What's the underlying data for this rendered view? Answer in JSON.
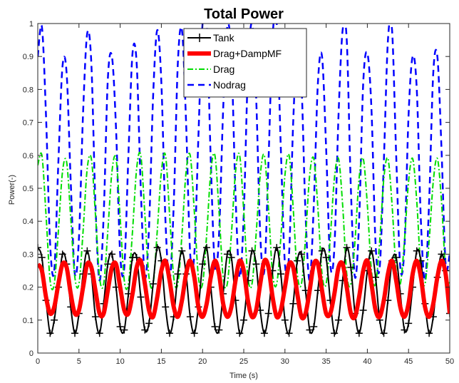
{
  "chart_data": {
    "type": "line",
    "title": "Total Power",
    "xlabel": "Time (s)",
    "ylabel": "Power(-)",
    "xlim": [
      0,
      50
    ],
    "ylim": [
      0,
      1
    ],
    "xticks": [
      "0",
      "5",
      "10",
      "15",
      "20",
      "25",
      "30",
      "35",
      "40",
      "45",
      "50"
    ],
    "yticks": [
      "0",
      "0.1",
      "0.2",
      "0.3",
      "0.4",
      "0.5",
      "0.6",
      "0.7",
      "0.8",
      "0.9",
      "1"
    ],
    "grid": false,
    "legend_position": "top-center",
    "series": [
      {
        "name": "Tank",
        "color": "#000000",
        "style": "solid-plus-markers",
        "x": [
          0.0,
          0.5,
          1.0,
          1.5,
          2.0,
          2.5,
          3.0,
          3.5,
          4.0,
          4.5,
          5.0,
          5.5,
          6.0,
          6.5,
          7.0,
          7.5,
          8.0,
          8.5,
          9.0,
          9.5,
          10.0,
          10.5,
          11.0,
          11.5,
          12.0,
          12.5,
          13.0,
          13.5,
          14.0,
          14.5,
          15.0,
          15.5,
          16.0,
          16.5,
          17.0,
          17.5,
          18.0,
          18.5,
          19.0,
          19.5,
          20.0,
          20.5,
          21.0,
          21.5,
          22.0,
          22.5,
          23.0,
          23.5,
          24.0,
          24.5,
          25.0,
          25.5,
          26.0,
          26.5,
          27.0,
          27.5,
          28.0,
          28.5,
          29.0,
          29.5,
          30.0,
          30.5,
          31.0,
          31.5,
          32.0,
          32.5,
          33.0,
          33.5,
          34.0,
          34.5,
          35.0,
          35.5,
          36.0,
          36.5,
          37.0,
          37.5,
          38.0,
          38.5,
          39.0,
          39.5,
          40.0,
          40.5,
          41.0,
          41.5,
          42.0,
          42.5,
          43.0,
          43.5,
          44.0,
          44.5,
          45.0,
          45.5,
          46.0,
          46.5,
          47.0,
          47.5,
          48.0,
          48.5,
          49.0,
          49.5,
          50.0
        ],
        "values": [
          0.32,
          0.29,
          0.16,
          0.06,
          0.1,
          0.2,
          0.3,
          0.27,
          0.14,
          0.06,
          0.12,
          0.24,
          0.31,
          0.24,
          0.11,
          0.06,
          0.15,
          0.27,
          0.3,
          0.2,
          0.08,
          0.07,
          0.18,
          0.29,
          0.29,
          0.17,
          0.07,
          0.09,
          0.21,
          0.32,
          0.28,
          0.14,
          0.06,
          0.11,
          0.24,
          0.31,
          0.24,
          0.11,
          0.06,
          0.14,
          0.27,
          0.32,
          0.2,
          0.08,
          0.07,
          0.18,
          0.3,
          0.29,
          0.16,
          0.06,
          0.1,
          0.22,
          0.31,
          0.27,
          0.13,
          0.06,
          0.12,
          0.25,
          0.32,
          0.24,
          0.1,
          0.06,
          0.15,
          0.28,
          0.3,
          0.19,
          0.07,
          0.08,
          0.19,
          0.31,
          0.29,
          0.16,
          0.06,
          0.1,
          0.22,
          0.32,
          0.26,
          0.12,
          0.06,
          0.13,
          0.25,
          0.31,
          0.23,
          0.1,
          0.06,
          0.16,
          0.28,
          0.29,
          0.18,
          0.07,
          0.09,
          0.2,
          0.31,
          0.28,
          0.15,
          0.06,
          0.11,
          0.23,
          0.3,
          0.25,
          0.12
        ]
      },
      {
        "name": "Drag+DampMF",
        "color": "#ff0000",
        "style": "thick-solid",
        "x": [
          0.0,
          0.5,
          1.0,
          1.5,
          2.0,
          2.5,
          3.0,
          3.5,
          4.0,
          4.5,
          5.0,
          5.5,
          6.0,
          6.5,
          7.0,
          7.5,
          8.0,
          8.5,
          9.0,
          9.5,
          10.0,
          10.5,
          11.0,
          11.5,
          12.0,
          12.5,
          13.0,
          13.5,
          14.0,
          14.5,
          15.0,
          15.5,
          16.0,
          16.5,
          17.0,
          17.5,
          18.0,
          18.5,
          19.0,
          19.5,
          20.0,
          20.5,
          21.0,
          21.5,
          22.0,
          22.5,
          23.0,
          23.5,
          24.0,
          24.5,
          25.0,
          25.5,
          26.0,
          26.5,
          27.0,
          27.5,
          28.0,
          28.5,
          29.0,
          29.5,
          30.0,
          30.5,
          31.0,
          31.5,
          32.0,
          32.5,
          33.0,
          33.5,
          34.0,
          34.5,
          35.0,
          35.5,
          36.0,
          36.5,
          37.0,
          37.5,
          38.0,
          38.5,
          39.0,
          39.5,
          40.0,
          40.5,
          41.0,
          41.5,
          42.0,
          42.5,
          43.0,
          43.5,
          44.0,
          44.5,
          45.0,
          45.5,
          46.0,
          46.5,
          47.0,
          47.5,
          48.0,
          48.5,
          49.0,
          49.5,
          50.0
        ],
        "values": [
          0.27,
          0.25,
          0.17,
          0.12,
          0.14,
          0.21,
          0.27,
          0.26,
          0.18,
          0.12,
          0.13,
          0.2,
          0.27,
          0.26,
          0.19,
          0.12,
          0.12,
          0.19,
          0.26,
          0.27,
          0.2,
          0.13,
          0.12,
          0.18,
          0.26,
          0.28,
          0.21,
          0.13,
          0.11,
          0.17,
          0.25,
          0.28,
          0.22,
          0.14,
          0.11,
          0.16,
          0.24,
          0.28,
          0.23,
          0.14,
          0.11,
          0.15,
          0.23,
          0.28,
          0.24,
          0.15,
          0.11,
          0.14,
          0.22,
          0.28,
          0.25,
          0.16,
          0.11,
          0.13,
          0.21,
          0.28,
          0.26,
          0.17,
          0.11,
          0.13,
          0.2,
          0.27,
          0.26,
          0.18,
          0.11,
          0.12,
          0.19,
          0.27,
          0.27,
          0.19,
          0.12,
          0.12,
          0.18,
          0.26,
          0.27,
          0.2,
          0.12,
          0.11,
          0.17,
          0.25,
          0.28,
          0.21,
          0.13,
          0.11,
          0.16,
          0.24,
          0.28,
          0.22,
          0.14,
          0.11,
          0.15,
          0.24,
          0.28,
          0.23,
          0.14,
          0.11,
          0.15,
          0.23,
          0.28,
          0.24,
          0.12
        ]
      },
      {
        "name": "Drag",
        "color": "#00dd00",
        "style": "dashdot",
        "x": [
          0.0,
          0.5,
          1.0,
          1.5,
          2.0,
          2.5,
          3.0,
          3.5,
          4.0,
          4.5,
          5.0,
          5.5,
          6.0,
          6.5,
          7.0,
          7.5,
          8.0,
          8.5,
          9.0,
          9.5,
          10.0,
          10.5,
          11.0,
          11.5,
          12.0,
          12.5,
          13.0,
          13.5,
          14.0,
          14.5,
          15.0,
          15.5,
          16.0,
          16.5,
          17.0,
          17.5,
          18.0,
          18.5,
          19.0,
          19.5,
          20.0,
          20.5,
          21.0,
          21.5,
          22.0,
          22.5,
          23.0,
          23.5,
          24.0,
          24.5,
          25.0,
          25.5,
          26.0,
          26.5,
          27.0,
          27.5,
          28.0,
          28.5,
          29.0,
          29.5,
          30.0,
          30.5,
          31.0,
          31.5,
          32.0,
          32.5,
          33.0,
          33.5,
          34.0,
          34.5,
          35.0,
          35.5,
          36.0,
          36.5,
          37.0,
          37.5,
          38.0,
          38.5,
          39.0,
          39.5,
          40.0,
          40.5,
          41.0,
          41.5,
          42.0,
          42.5,
          43.0,
          43.5,
          44.0,
          44.5,
          45.0,
          45.5,
          46.0,
          46.5,
          47.0,
          47.5,
          48.0,
          48.5,
          49.0,
          49.5,
          50.0
        ],
        "values": [
          0.57,
          0.6,
          0.42,
          0.22,
          0.21,
          0.37,
          0.55,
          0.58,
          0.41,
          0.23,
          0.21,
          0.37,
          0.56,
          0.59,
          0.42,
          0.23,
          0.21,
          0.37,
          0.55,
          0.59,
          0.41,
          0.22,
          0.21,
          0.37,
          0.56,
          0.6,
          0.42,
          0.23,
          0.21,
          0.37,
          0.55,
          0.6,
          0.42,
          0.23,
          0.21,
          0.36,
          0.55,
          0.6,
          0.43,
          0.23,
          0.21,
          0.36,
          0.55,
          0.6,
          0.43,
          0.23,
          0.21,
          0.36,
          0.55,
          0.6,
          0.43,
          0.23,
          0.21,
          0.36,
          0.54,
          0.6,
          0.44,
          0.24,
          0.21,
          0.35,
          0.54,
          0.6,
          0.44,
          0.24,
          0.21,
          0.35,
          0.54,
          0.59,
          0.44,
          0.24,
          0.21,
          0.35,
          0.53,
          0.59,
          0.45,
          0.24,
          0.21,
          0.34,
          0.53,
          0.59,
          0.45,
          0.25,
          0.21,
          0.34,
          0.53,
          0.59,
          0.45,
          0.25,
          0.21,
          0.34,
          0.52,
          0.59,
          0.46,
          0.25,
          0.21,
          0.34,
          0.52,
          0.59,
          0.46,
          0.25,
          0.21
        ]
      },
      {
        "name": "Nodrag",
        "color": "#0000ff",
        "style": "dashed",
        "x": [
          0.0,
          0.5,
          1.0,
          1.5,
          2.0,
          2.5,
          3.0,
          3.5,
          4.0,
          4.5,
          5.0,
          5.5,
          6.0,
          6.5,
          7.0,
          7.5,
          8.0,
          8.5,
          9.0,
          9.5,
          10.0,
          10.5,
          11.0,
          11.5,
          12.0,
          12.5,
          13.0,
          13.5,
          14.0,
          14.5,
          15.0,
          15.5,
          16.0,
          16.5,
          17.0,
          17.5,
          18.0,
          18.5,
          19.0,
          19.5,
          20.0,
          20.5,
          21.0,
          21.5,
          22.0,
          22.5,
          23.0,
          23.5,
          24.0,
          24.5,
          25.0,
          25.5,
          26.0,
          26.5,
          27.0,
          27.5,
          28.0,
          28.5,
          29.0,
          29.5,
          30.0,
          30.5,
          31.0,
          31.5,
          32.0,
          32.5,
          33.0,
          33.5,
          34.0,
          34.5,
          35.0,
          35.5,
          36.0,
          36.5,
          37.0,
          37.5,
          38.0,
          38.5,
          39.0,
          39.5,
          40.0,
          40.5,
          41.0,
          41.5,
          42.0,
          42.5,
          43.0,
          43.5,
          44.0,
          44.5,
          45.0,
          45.5,
          46.0,
          46.5,
          47.0,
          47.5,
          48.0,
          48.5,
          49.0,
          49.5,
          50.0
        ],
        "values": [
          0.9,
          0.99,
          0.72,
          0.33,
          0.25,
          0.58,
          0.87,
          0.85,
          0.52,
          0.24,
          0.35,
          0.73,
          0.97,
          0.88,
          0.45,
          0.22,
          0.42,
          0.83,
          0.9,
          0.68,
          0.3,
          0.26,
          0.6,
          0.91,
          0.88,
          0.5,
          0.23,
          0.38,
          0.78,
          0.98,
          0.82,
          0.4,
          0.22,
          0.45,
          0.88,
          0.98,
          0.7,
          0.3,
          0.3,
          0.66,
          1.0,
          1.0,
          0.58,
          0.26,
          0.36,
          0.74,
          0.99,
          0.9,
          0.48,
          0.23,
          0.42,
          0.85,
          1.0,
          0.78,
          0.36,
          0.25,
          0.58,
          0.96,
          1.0,
          0.62,
          0.27,
          0.3,
          0.7,
          0.93,
          0.82,
          0.42,
          0.22,
          0.45,
          0.82,
          0.9,
          0.62,
          0.27,
          0.32,
          0.72,
          0.98,
          0.95,
          0.5,
          0.23,
          0.4,
          0.82,
          0.91,
          0.74,
          0.33,
          0.26,
          0.58,
          0.95,
          0.98,
          0.6,
          0.26,
          0.32,
          0.72,
          0.9,
          0.8,
          0.4,
          0.22,
          0.46,
          0.85,
          0.9,
          0.62,
          0.27,
          0.3
        ]
      }
    ]
  }
}
